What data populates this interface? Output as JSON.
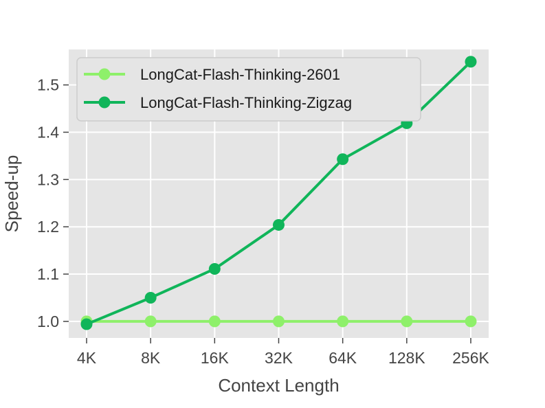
{
  "chart_data": {
    "type": "line",
    "title": "",
    "xlabel": "Context Length",
    "ylabel": "Speed-up",
    "categories": [
      "4K",
      "8K",
      "16K",
      "32K",
      "64K",
      "128K",
      "256K"
    ],
    "ylim": [
      0.965,
      1.575
    ],
    "yticks": [
      1.0,
      1.1,
      1.2,
      1.3,
      1.4,
      1.5
    ],
    "ytick_labels": [
      "1.0",
      "1.1",
      "1.2",
      "1.3",
      "1.4",
      "1.5"
    ],
    "grid": true,
    "legend_position": "top-left",
    "background": "#e5e5e5",
    "series": [
      {
        "name": "LongCat-Flash-Thinking-2601",
        "color": "#8ef06a",
        "values": [
          1.0,
          1.0,
          1.0,
          1.0,
          1.0,
          1.0,
          1.0
        ]
      },
      {
        "name": "LongCat-Flash-Thinking-Zigzag",
        "color": "#10b55a",
        "values": [
          0.994,
          1.05,
          1.111,
          1.204,
          1.343,
          1.419,
          1.549
        ]
      }
    ]
  }
}
